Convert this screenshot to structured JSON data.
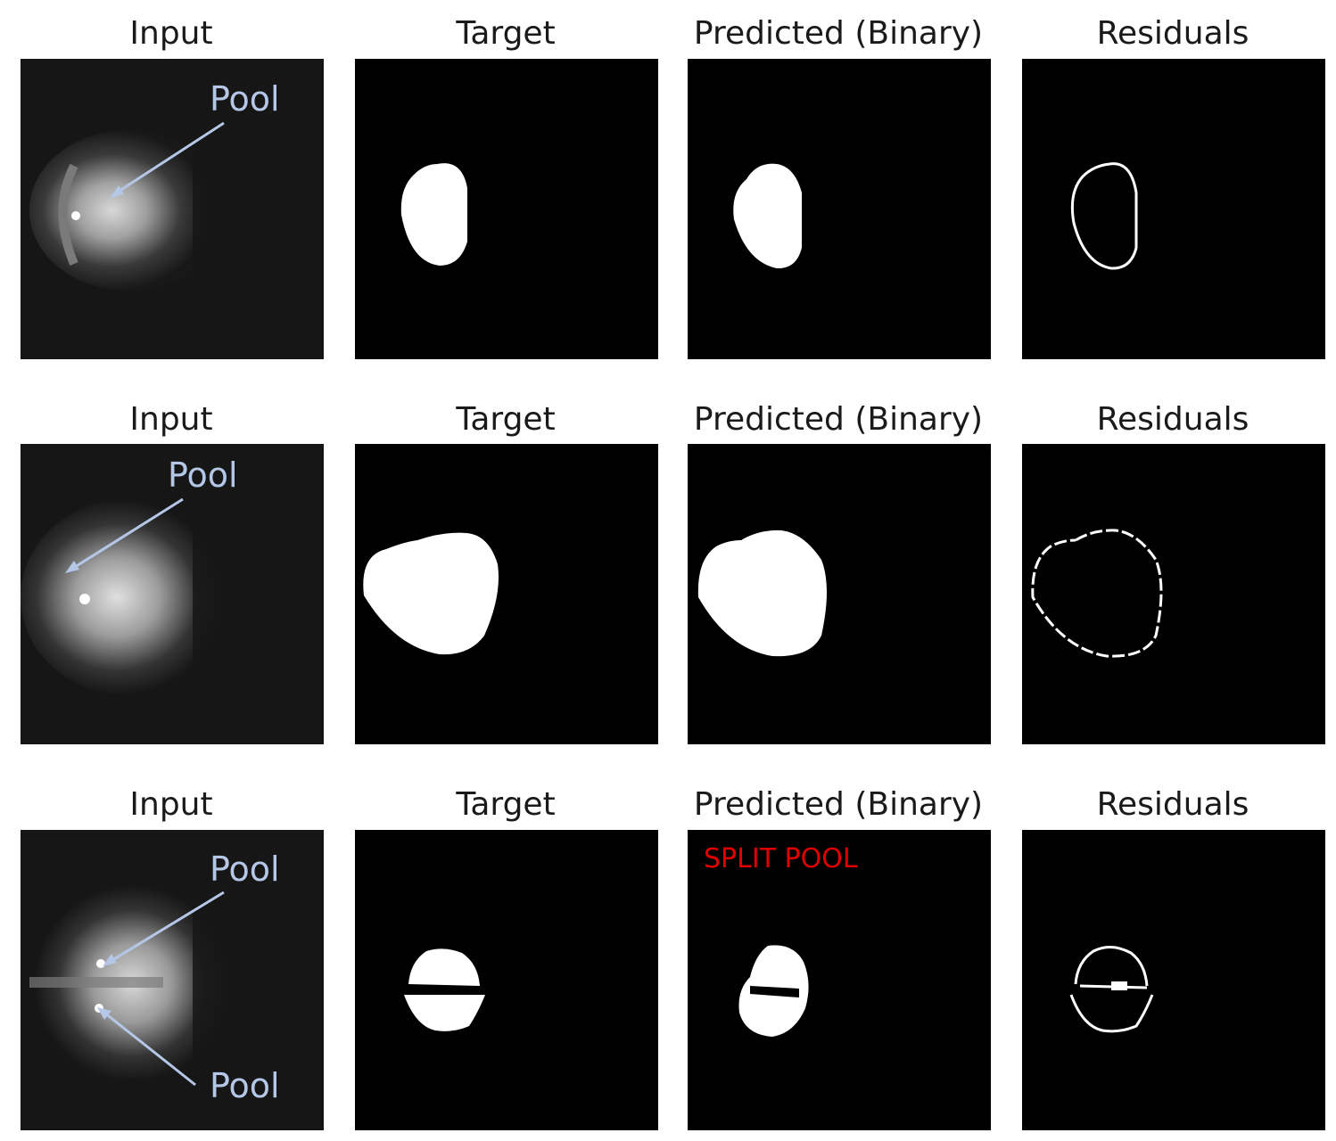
{
  "rows": [
    {
      "titles": [
        "Input",
        "Target",
        "Predicted (Binary)",
        "Residuals"
      ],
      "input_labels": [
        "Pool"
      ]
    },
    {
      "titles": [
        "Input",
        "Target",
        "Predicted (Binary)",
        "Residuals"
      ],
      "input_labels": [
        "Pool"
      ]
    },
    {
      "titles": [
        "Input",
        "Target",
        "Predicted (Binary)",
        "Residuals"
      ],
      "input_labels": [
        "Pool",
        "Pool"
      ],
      "predicted_annotation": "SPLIT POOL"
    }
  ],
  "colors": {
    "annotation_arrow": "#b4c7e7",
    "warning_text": "#e00000",
    "mask": "#ffffff",
    "background": "#000000"
  }
}
